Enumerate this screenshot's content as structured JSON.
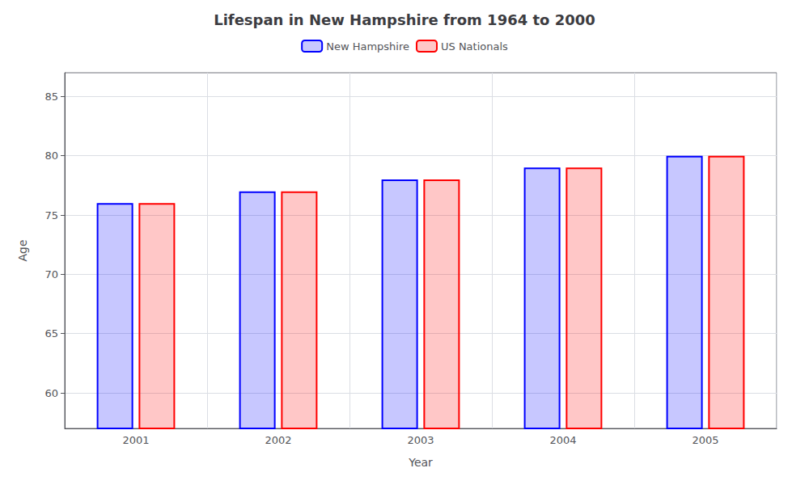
{
  "chart_data": {
    "type": "bar",
    "title": "Lifespan in New Hampshire from 1964 to 2000",
    "x_label": "Year",
    "y_label": "Age",
    "categories": [
      "2001",
      "2002",
      "2003",
      "2004",
      "2005"
    ],
    "series": [
      {
        "name": "New Hampshire",
        "color": "#0000ff",
        "values": [
          76,
          77,
          78,
          79,
          80
        ]
      },
      {
        "name": "US Nationals",
        "color": "#ff0000",
        "values": [
          76,
          77,
          78,
          79,
          80
        ]
      }
    ],
    "ylim": [
      57,
      87
    ],
    "yticks": [
      60,
      65,
      70,
      75,
      80,
      85
    ],
    "grid": true,
    "legend": "top"
  }
}
